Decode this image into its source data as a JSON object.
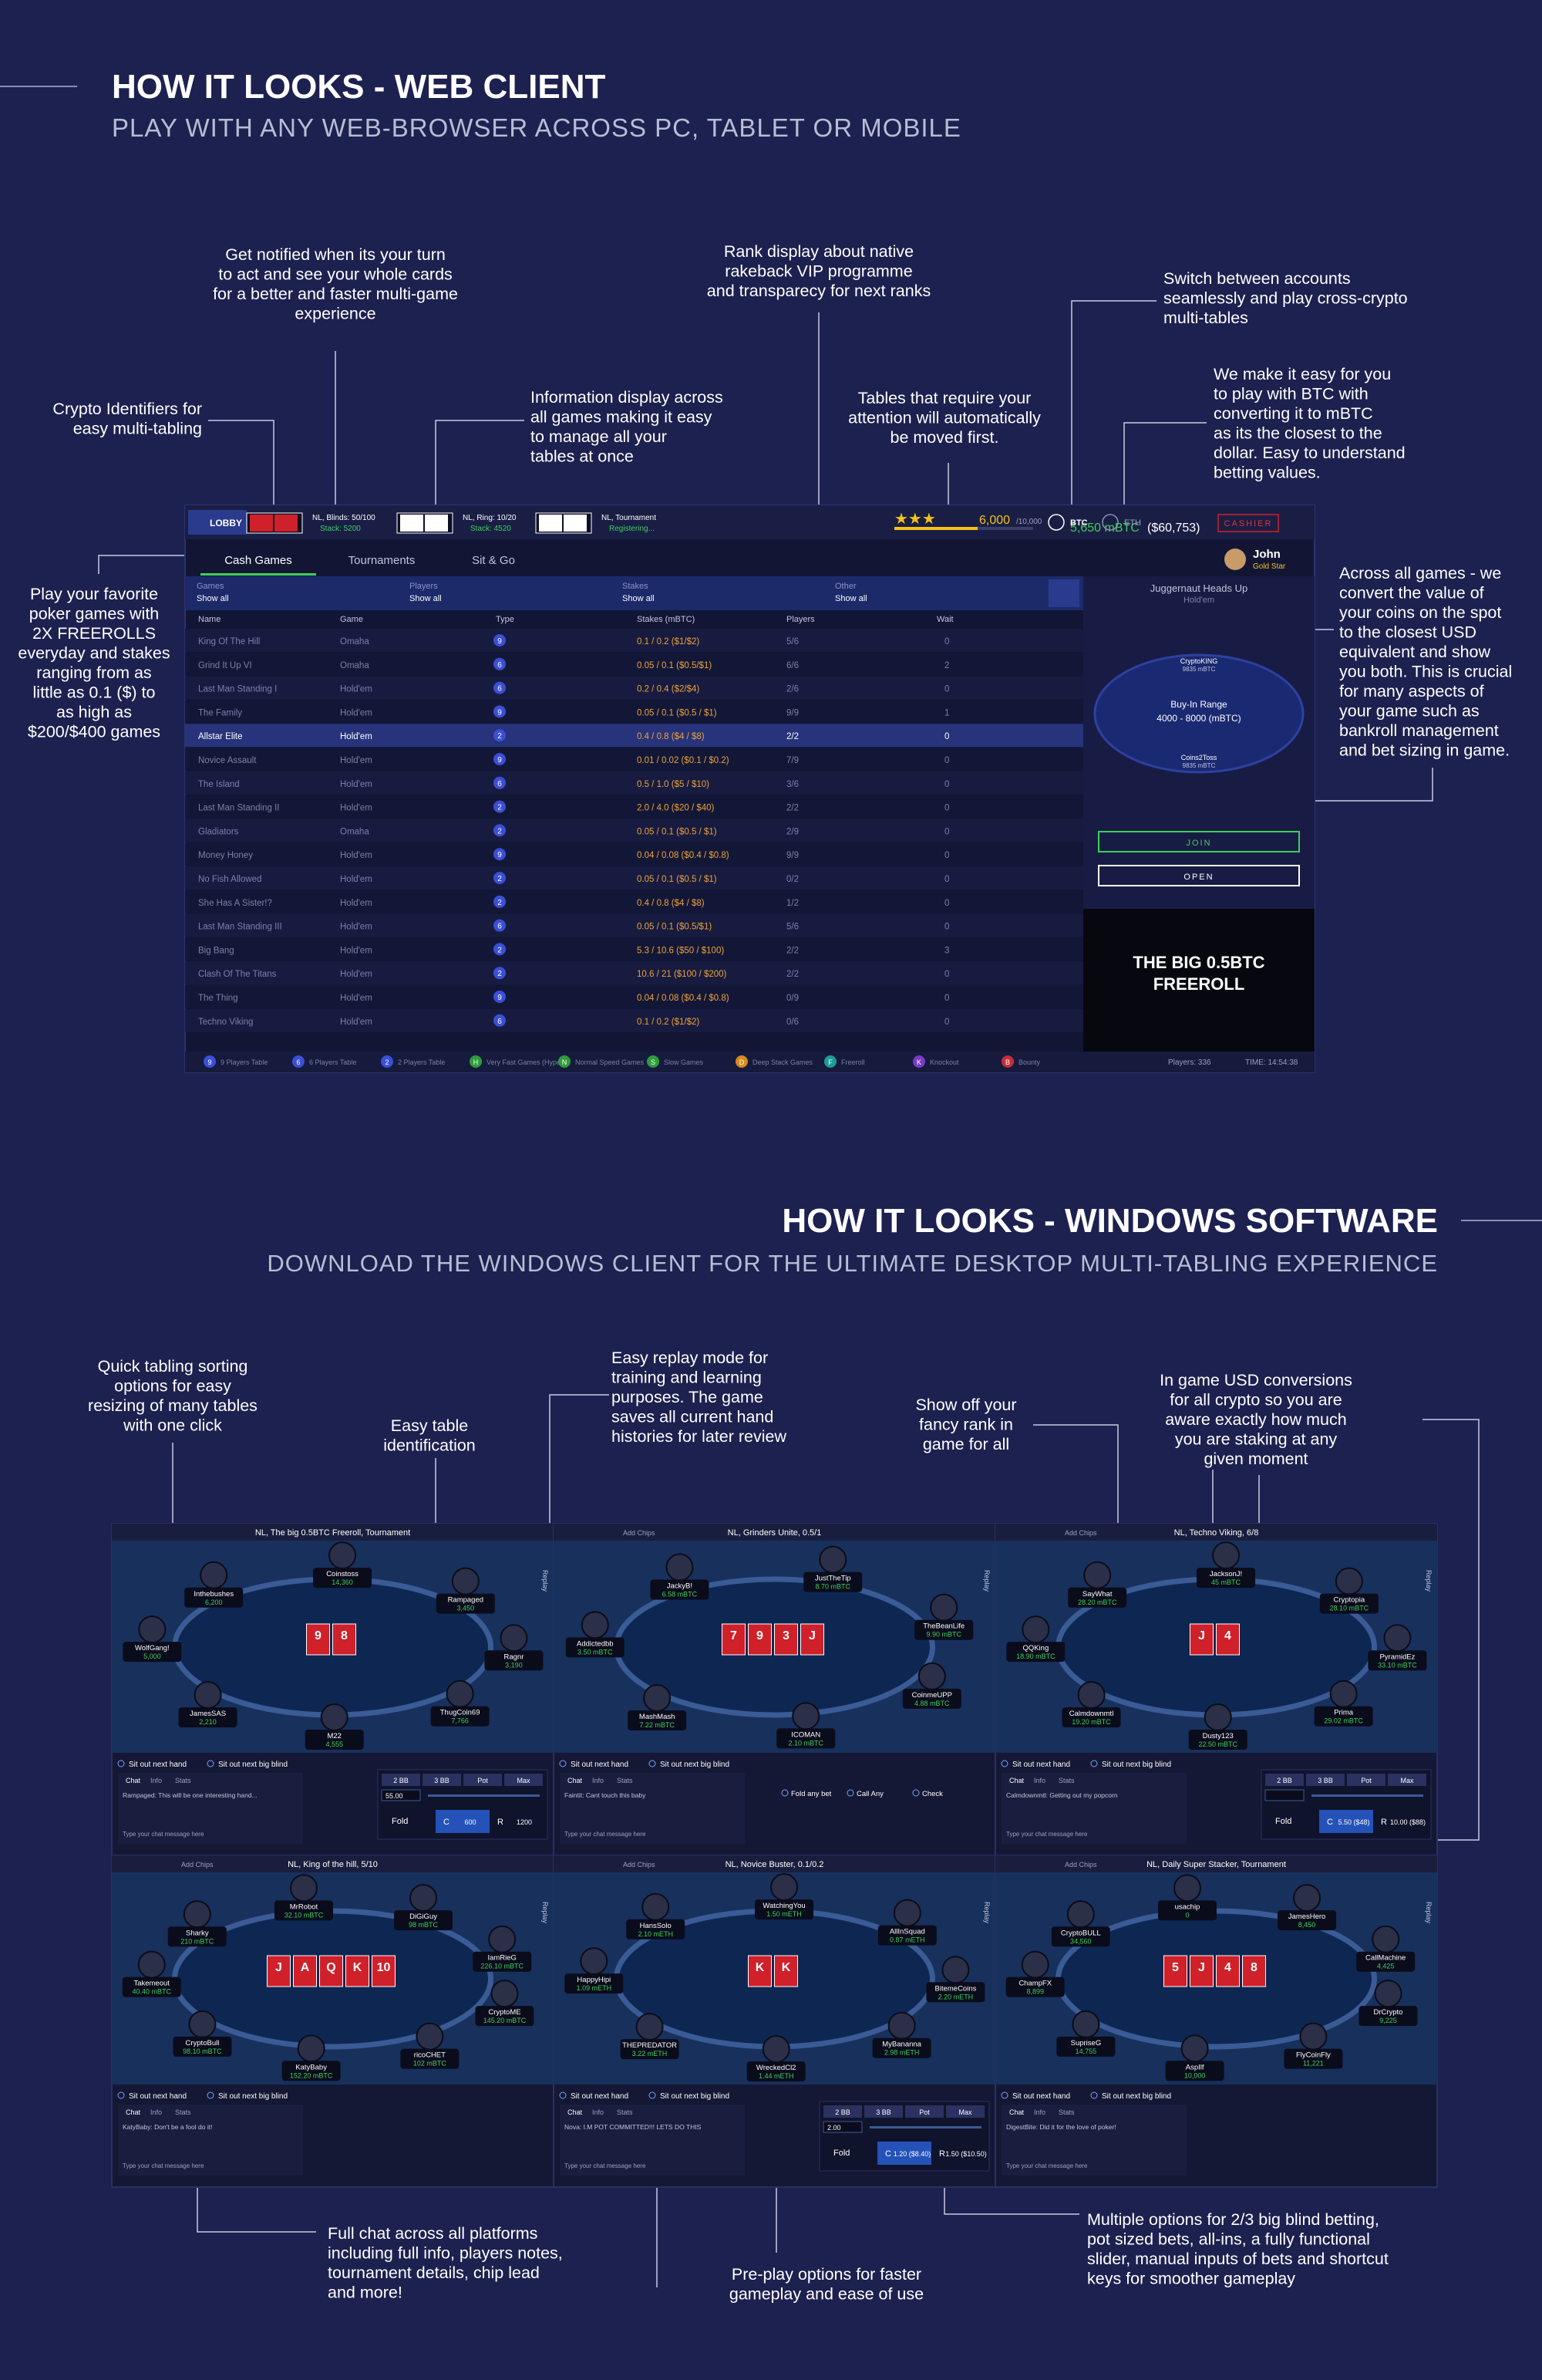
{
  "web_section": {
    "title": "HOW IT LOOKS - WEB CLIENT",
    "subtitle": "PLAY WITH ANY WEB-BROWSER ACROSS PC, TABLET OR MOBILE"
  },
  "web_annotations": [
    {
      "lines": [
        "Get notified when its your turn",
        "to act and see your whole cards",
        "for a better and faster multi-game",
        "experience"
      ]
    },
    {
      "lines": [
        "Rank display about native",
        "rakeback VIP programme",
        "and transparecy for next ranks"
      ]
    },
    {
      "lines": [
        "Switch between accounts",
        "seamlessly and play cross-crypto",
        "multi-tables"
      ]
    },
    {
      "lines": [
        "Crypto Identifiers for",
        "easy multi-tabling"
      ]
    },
    {
      "lines": [
        "Information display across",
        "all games making it easy",
        "to manage all your",
        "tables at once"
      ]
    },
    {
      "lines": [
        "Tables that require your",
        "attention will automatically",
        "be moved first."
      ]
    },
    {
      "lines": [
        "We make it easy for you",
        "to play with BTC with",
        "converting it to mBTC",
        "as its the closest to the",
        "dollar. Easy to understand",
        "betting values."
      ]
    },
    {
      "lines": [
        "Play your favorite",
        "poker games with",
        "2X FREEROLLS",
        "everyday and stakes",
        "ranging from as",
        "little  as 0.1 ($) to",
        "as high as",
        "$200/$400 games"
      ]
    },
    {
      "lines": [
        "Across all games - we",
        "convert the value of",
        "your coins on the spot",
        "to the closest USD",
        "equivalent and show",
        "you both. This is crucial",
        "for many aspects of",
        "your game such as",
        "bankroll management",
        "and bet sizing in game."
      ]
    }
  ],
  "lobby": {
    "nav": {
      "lobby": "LOBBY",
      "tables": [
        {
          "line1": "NL, Blinds: 50/100",
          "line2": "Stack: 5200"
        },
        {
          "line1": "NL, Ring: 10/20",
          "line2": "Stack: 4520"
        },
        {
          "line1": "NL, Tournament",
          "line2": "Registering..."
        }
      ],
      "vip_points": "6,000",
      "vip_target": "/10,000",
      "balance": "5,650 mBTC",
      "balance_usd": "($60,753)",
      "btc": "BTC",
      "eth": "ETH",
      "cashier": "CASHIER",
      "user": "John",
      "rank": "Gold Star"
    },
    "tabs": [
      "Cash Games",
      "Tournaments",
      "Sit & Go"
    ],
    "filters": [
      {
        "label": "Games",
        "value": "Show all"
      },
      {
        "label": "Players",
        "value": "Show all"
      },
      {
        "label": "Stakes",
        "value": "Show all"
      },
      {
        "label": "Other",
        "value": "Show all"
      }
    ],
    "columns": [
      "Name",
      "Game",
      "Type",
      "Stakes (mBTC)",
      "Players",
      "Wait"
    ],
    "rows": [
      {
        "name": "King Of The Hill",
        "game": "Omaha",
        "type": "9",
        "stakes": "0.1 / 0.2 ($1/$2)",
        "players": "5/6",
        "wait": 0
      },
      {
        "name": "Grind It Up VI",
        "game": "Omaha",
        "type": "6",
        "stakes": "0.05 / 0.1 ($0.5/$1)",
        "players": "6/6",
        "wait": 2
      },
      {
        "name": "Last Man Standing I",
        "game": "Hold'em",
        "type": "6",
        "stakes": "0.2 / 0.4 ($2/$4)",
        "players": "2/6",
        "wait": 0
      },
      {
        "name": "The Family",
        "game": "Hold'em",
        "type": "9",
        "stakes": "0.05 / 0.1 ($0.5 / $1)",
        "players": "9/9",
        "wait": 1
      },
      {
        "name": "Allstar Elite",
        "game": "Hold'em",
        "type": "2",
        "stakes": "0.4 / 0.8 ($4 / $8)",
        "players": "2/2",
        "wait": 0
      },
      {
        "name": "Novice Assault",
        "game": "Hold'em",
        "type": "9",
        "stakes": "0.01 / 0.02 ($0.1 / $0.2)",
        "players": "7/9",
        "wait": 0
      },
      {
        "name": "The Island",
        "game": "Hold'em",
        "type": "6",
        "stakes": "0.5 / 1.0 ($5 / $10)",
        "players": "3/6",
        "wait": 0
      },
      {
        "name": "Last Man Standing II",
        "game": "Hold'em",
        "type": "2",
        "stakes": "2.0 / 4.0 ($20 / $40)",
        "players": "2/2",
        "wait": 0
      },
      {
        "name": "Gladiators",
        "game": "Omaha",
        "type": "2",
        "stakes": "0.05 / 0.1 ($0.5 / $1)",
        "players": "2/9",
        "wait": 0
      },
      {
        "name": "Money Honey",
        "game": "Hold'em",
        "type": "9",
        "stakes": "0.04 / 0.08 ($0.4 / $0.8)",
        "players": "9/9",
        "wait": 0
      },
      {
        "name": "No Fish Allowed",
        "game": "Hold'em",
        "type": "2",
        "stakes": "0.05 / 0.1 ($0.5 / $1)",
        "players": "0/2",
        "wait": 0
      },
      {
        "name": "She Has A Sister!?",
        "game": "Hold'em",
        "type": "2",
        "stakes": "0.4 / 0.8 ($4 / $8)",
        "players": "1/2",
        "wait": 0
      },
      {
        "name": "Last Man Standing III",
        "game": "Hold'em",
        "type": "6",
        "stakes": "0.05 / 0.1 ($0.5/$1)",
        "players": "5/6",
        "wait": 0
      },
      {
        "name": "Big Bang",
        "game": "Hold'em",
        "type": "2",
        "stakes": "5.3 / 10.6 ($50 / $100)",
        "players": "2/2",
        "wait": 3
      },
      {
        "name": "Clash Of The Titans",
        "game": "Hold'em",
        "type": "2",
        "stakes": "10.6 / 21 ($100 / $200)",
        "players": "2/2",
        "wait": 0
      },
      {
        "name": "The Thing",
        "game": "Hold'em",
        "type": "9",
        "stakes": "0.04 / 0.08 ($0.4 / $0.8)",
        "players": "0/9",
        "wait": 0
      },
      {
        "name": "Techno Viking",
        "game": "Hold'em",
        "type": "6",
        "stakes": "0.1 / 0.2 ($1/$2)",
        "players": "0/6",
        "wait": 0
      }
    ],
    "legend": [
      {
        "icon": "9",
        "label": "9 Players Table",
        "color": "#3b4fd6"
      },
      {
        "icon": "6",
        "label": "6 Players Table",
        "color": "#3b4fd6"
      },
      {
        "icon": "2",
        "label": "2 Players Table",
        "color": "#3b4fd6"
      },
      {
        "icon": "H",
        "label": "Very Fast Games (Hyper)",
        "color": "#2e9c3a"
      },
      {
        "icon": "N",
        "label": "Normal Speed Games",
        "color": "#2e9c3a"
      },
      {
        "icon": "S",
        "label": "Slow Games",
        "color": "#2e9c3a"
      },
      {
        "icon": "D",
        "label": "Deep Stack Games",
        "color": "#d88a1c"
      },
      {
        "icon": "F",
        "label": "Freeroll",
        "color": "#1e9c96"
      },
      {
        "icon": "K",
        "label": "Knockout",
        "color": "#7a3cc4"
      },
      {
        "icon": "B",
        "label": "Bounty",
        "color": "#c42e3a"
      }
    ],
    "footer": {
      "players": "Players: 336",
      "time": "TIME: 14:54:38"
    },
    "side": {
      "title": "Juggernaut Heads Up",
      "game": "Hold'em",
      "seat1_name": "CryptoKING",
      "seat1_stack": "9835 mBTC",
      "buyin_label": "Buy-In Range",
      "buyin": "4000 - 8000 (mBTC)",
      "seat2_name": "Coins2Toss",
      "seat2_stack": "9835 mBTC",
      "join": "JOIN",
      "open": "OPEN",
      "promo_line1": "THE BIG 0.5BTC",
      "promo_line2": "FREEROLL"
    }
  },
  "windows_section": {
    "title": "HOW IT LOOKS - WINDOWS SOFTWARE",
    "subtitle": "DOWNLOAD THE WINDOWS CLIENT FOR THE ULTIMATE DESKTOP MULTI-TABLING EXPERIENCE"
  },
  "windows_annotations": [
    {
      "lines": [
        "Quick tabling sorting",
        "options for easy",
        "resizing of many tables",
        "with one click"
      ]
    },
    {
      "lines": [
        "Easy table",
        "identification"
      ]
    },
    {
      "lines": [
        "Easy replay mode for",
        "training and learning",
        "purposes. The game",
        "saves all current hand",
        "histories for later review"
      ]
    },
    {
      "lines": [
        "Show off your",
        "fancy rank in",
        "game for all"
      ]
    },
    {
      "lines": [
        "In game USD conversions",
        "for all crypto so you are",
        "aware exactly how much",
        "you are staking at any",
        "given moment"
      ]
    },
    {
      "lines": [
        "Full chat across all platforms",
        "including full info, players notes,",
        "tournament details, chip lead",
        "and more!"
      ]
    },
    {
      "lines": [
        "Pre-play options for faster",
        "gameplay and ease of use"
      ]
    },
    {
      "lines": [
        "Multiple options for 2/3 big blind betting,",
        "pot sized bets, all-ins, a fully functional",
        "slider, manual inputs of bets and shortcut",
        "keys for smoother gameplay"
      ]
    }
  ],
  "controls": {
    "sit_out_hand": "Sit out next hand",
    "sit_out_bb": "Sit out next big blind",
    "chat_tabs": [
      "Chat",
      "Info",
      "Stats"
    ],
    "chat_placeholder": "Type your chat message here",
    "bet_buttons": [
      "2 BB",
      "3 BB",
      "Pot",
      "Max"
    ],
    "fold": "Fold",
    "call": "C",
    "raise": "R",
    "preplay": [
      "Fold any bet",
      "Call Any",
      "Check"
    ],
    "replay": "Replay",
    "add_chips": "Add Chips"
  },
  "windows": [
    {
      "title": "NL, The big 0.5BTC Freeroll, Tournament",
      "board": [
        "9",
        "8"
      ],
      "chat": "Rampaged: This will be one interesting hand...",
      "bet": {
        "input": "55.00",
        "call": "600",
        "raise": "1200"
      },
      "players": [
        {
          "name": "WolfGang!",
          "stack": "5,000"
        },
        {
          "name": "Inthebushes",
          "stack": "6,200"
        },
        {
          "name": "Coinstoss",
          "stack": "14,360"
        },
        {
          "name": "Rampaged",
          "stack": "3,450"
        },
        {
          "name": "Ragnr",
          "stack": "3,190"
        },
        {
          "name": "ThugCoin69",
          "stack": "7,766"
        },
        {
          "name": "M22",
          "stack": "4,555"
        },
        {
          "name": "JamesSAS",
          "stack": "2,210"
        }
      ]
    },
    {
      "title": "NL, Grinders Unite, 0.5/1",
      "board": [
        "7",
        "9",
        "3",
        "J"
      ],
      "chat": "Faintit: Cant touch this baby",
      "players": [
        {
          "name": "Addictedbb",
          "stack": "3.50 mBTC"
        },
        {
          "name": "JackyB!",
          "stack": "6.58 mBTC"
        },
        {
          "name": "JustTheTip",
          "stack": "8.70 mBTC"
        },
        {
          "name": "TheBeanLife",
          "stack": "9.90 mBTC"
        },
        {
          "name": "CoinmeUPP",
          "stack": "4.88 mBTC"
        },
        {
          "name": "ICOMAN",
          "stack": "2.10 mBTC"
        },
        {
          "name": "MashMash",
          "stack": "7.22 mBTC"
        }
      ]
    },
    {
      "title": "NL, Techno Viking, 6/8",
      "board": [
        "J",
        "4"
      ],
      "chat": "Calmdownmtl: Getting out my popcorn",
      "bet": {
        "input": "",
        "call": "5.50 ($48)",
        "raise": "10.00 ($88)"
      },
      "players": [
        {
          "name": "QQKing",
          "stack": "18.90 mBTC"
        },
        {
          "name": "SayWhat",
          "stack": "28.20 mBTC"
        },
        {
          "name": "JacksonJ!",
          "stack": "45 mBTC"
        },
        {
          "name": "Cryptopia",
          "stack": "28.10 mBTC"
        },
        {
          "name": "PyramidEz",
          "stack": "33.10 mBTC"
        },
        {
          "name": "Prima",
          "stack": "29.02 mBTC"
        },
        {
          "name": "Dusty123",
          "stack": "22.50 mBTC"
        },
        {
          "name": "Calmdownmtl",
          "stack": "19.20 mBTC"
        }
      ]
    },
    {
      "title": "NL, King of the hill, 5/10",
      "board": [
        "J",
        "A",
        "Q",
        "K",
        "10"
      ],
      "chat": "KatyBaby: Don't be a fool do it!",
      "players": [
        {
          "name": "Takemeout",
          "stack": "40.40 mBTC"
        },
        {
          "name": "Sharky",
          "stack": "210 mBTC"
        },
        {
          "name": "MrRobot",
          "stack": "32.10 mBTC"
        },
        {
          "name": "DiGiGuy",
          "stack": "98 mBTC"
        },
        {
          "name": "IamRieG",
          "stack": "226.10 mBTC"
        },
        {
          "name": "CryptoME",
          "stack": "145.20 mBTC"
        },
        {
          "name": "ricoCHET",
          "stack": "102 mBTC"
        },
        {
          "name": "KatyBaby",
          "stack": "152.20 mBTC"
        },
        {
          "name": "CryptoBull",
          "stack": "98.10 mBTC"
        }
      ]
    },
    {
      "title": "NL, Novice Buster, 0.1/0.2",
      "board": [
        "K",
        "K"
      ],
      "chat": "Nova: I.M POT COMMITTED!!! LETS DO THIS",
      "bet": {
        "input": "2.00",
        "call": "1.20 ($8.40)",
        "raise": "1.50 ($10.50)"
      },
      "players": [
        {
          "name": "HappyHipi",
          "stack": "1.09 mETH"
        },
        {
          "name": "HansSolo",
          "stack": "2.10 mETH"
        },
        {
          "name": "WatchingYou",
          "stack": "1.50 mETH"
        },
        {
          "name": "AllInSquad",
          "stack": "0.87 mETH"
        },
        {
          "name": "BitemeCoins",
          "stack": "2.20 mETH"
        },
        {
          "name": "MyBananna",
          "stack": "2.98 mETH"
        },
        {
          "name": "WreckedCl2",
          "stack": "1.44 mETH"
        },
        {
          "name": "THEPREDATOR",
          "stack": "3.22 mETH"
        }
      ]
    },
    {
      "title": "NL, Daily Super Stacker, Tournament",
      "board": [
        "5",
        "J",
        "4",
        "8"
      ],
      "chat": "DigestBite: Did it for the love of poker!",
      "players": [
        {
          "name": "ChampFX",
          "stack": "8,899"
        },
        {
          "name": "CryptoBULL",
          "stack": "34,560"
        },
        {
          "name": "usachip",
          "stack": "0"
        },
        {
          "name": "JamesHero",
          "stack": "8,450"
        },
        {
          "name": "CallMachine",
          "stack": "4,425"
        },
        {
          "name": "DrCrypto",
          "stack": "9,225"
        },
        {
          "name": "FlyCoinFly",
          "stack": "11,221"
        },
        {
          "name": "AspIlf",
          "stack": "10,000"
        },
        {
          "name": "SupriseG",
          "stack": "14,755"
        }
      ]
    }
  ]
}
